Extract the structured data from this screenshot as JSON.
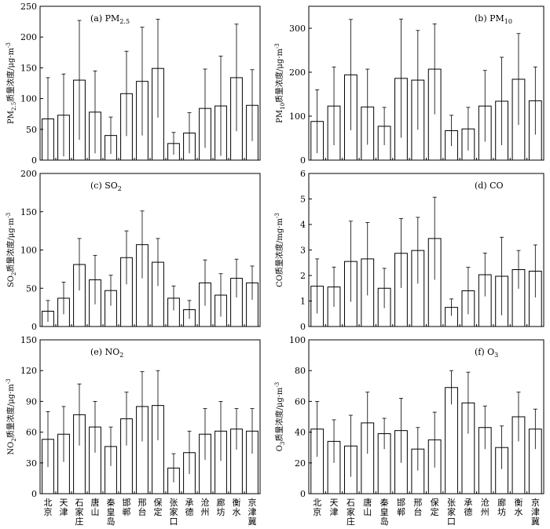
{
  "chart_data": [
    {
      "type": "bar",
      "panel": "a",
      "title": "(a) PM",
      "title_sub": "2.5",
      "ylabel": "PM",
      "ylabel_sub": "2.5",
      "ylabel_rest": "质量浓度/μg·m",
      "ylabel_sup": "-3",
      "ylim": [
        0,
        250
      ],
      "yticks": [
        0,
        50,
        100,
        150,
        200,
        250
      ],
      "categories": [
        "北京",
        "天津",
        "石家庄",
        "唐山",
        "秦皇岛",
        "邯郸",
        "邢台",
        "保定",
        "张家口",
        "承德",
        "沧州",
        "廊坊",
        "衡水",
        "京津冀"
      ],
      "values": [
        67,
        73,
        130,
        78,
        40,
        108,
        128,
        149,
        27,
        44,
        84,
        88,
        134,
        89
      ],
      "errors": [
        67,
        67,
        97,
        67,
        30,
        69,
        88,
        80,
        18,
        33,
        64,
        81,
        87,
        58
      ]
    },
    {
      "type": "bar",
      "panel": "b",
      "title": "(b) PM",
      "title_sub": "10",
      "ylabel": "PM",
      "ylabel_sub": "10",
      "ylabel_rest": "质量浓度/μg·m",
      "ylabel_sup": "-3",
      "ylim": [
        0,
        350
      ],
      "yticks": [
        0,
        100,
        200,
        300
      ],
      "categories": [
        "北京",
        "天津",
        "石家庄",
        "唐山",
        "秦皇岛",
        "邯郸",
        "邢台",
        "保定",
        "张家口",
        "承德",
        "沧州",
        "廊坊",
        "衡水",
        "京津冀"
      ],
      "values": [
        88,
        123,
        194,
        121,
        77,
        186,
        182,
        207,
        67,
        71,
        123,
        134,
        184,
        135
      ],
      "errors": [
        72,
        89,
        126,
        86,
        43,
        135,
        113,
        103,
        35,
        49,
        81,
        100,
        104,
        77
      ]
    },
    {
      "type": "bar",
      "panel": "c",
      "title": "(c) SO",
      "title_sub": "2",
      "ylabel": "SO",
      "ylabel_sub": "2",
      "ylabel_rest": "质量浓度/μg·m",
      "ylabel_sup": "-3",
      "ylim": [
        0,
        200
      ],
      "yticks": [
        0,
        50,
        100,
        150,
        200
      ],
      "categories": [
        "北京",
        "天津",
        "石家庄",
        "唐山",
        "秦皇岛",
        "邯郸",
        "邢台",
        "保定",
        "张家口",
        "承德",
        "沧州",
        "廊坊",
        "衡水",
        "京津冀"
      ],
      "values": [
        20,
        37,
        81,
        61,
        47,
        90,
        107,
        84,
        37,
        22,
        57,
        41,
        63,
        57
      ],
      "errors": [
        14,
        21,
        34,
        32,
        20,
        35,
        44,
        31,
        16,
        12,
        30,
        28,
        25,
        22
      ]
    },
    {
      "type": "bar",
      "panel": "d",
      "title": "(d) CO",
      "title_sub": "",
      "ylabel": "CO",
      "ylabel_sub": "",
      "ylabel_rest": "质量浓度/mg·m",
      "ylabel_sup": "-3",
      "ylim": [
        0,
        6
      ],
      "yticks": [
        0,
        1,
        2,
        3,
        4,
        5,
        6
      ],
      "categories": [
        "北京",
        "天津",
        "石家庄",
        "唐山",
        "秦皇岛",
        "邯郸",
        "邢台",
        "保定",
        "张家口",
        "承德",
        "沧州",
        "廊坊",
        "衡水",
        "京津冀"
      ],
      "values": [
        1.58,
        1.55,
        2.55,
        2.65,
        1.5,
        2.87,
        2.98,
        3.45,
        0.75,
        1.4,
        2.03,
        1.97,
        2.23,
        2.17
      ],
      "errors": [
        1.07,
        0.78,
        1.58,
        1.43,
        0.78,
        1.36,
        1.3,
        1.62,
        0.33,
        0.92,
        0.85,
        1.53,
        0.75,
        1.03
      ]
    },
    {
      "type": "bar",
      "panel": "e",
      "title": "(e) NO",
      "title_sub": "2",
      "ylabel": "NO",
      "ylabel_sub": "2",
      "ylabel_rest": "质量浓度/μg·m",
      "ylabel_sup": "-3",
      "ylim": [
        0,
        150
      ],
      "yticks": [
        0,
        30,
        60,
        90,
        120,
        150
      ],
      "categories": [
        "北京",
        "天津",
        "石家庄",
        "唐山",
        "秦皇岛",
        "邯郸",
        "邢台",
        "保定",
        "张家口",
        "承德",
        "沧州",
        "廊坊",
        "衡水",
        "京津冀"
      ],
      "values": [
        53,
        58,
        77,
        65,
        46,
        73,
        85,
        86,
        25,
        40,
        58,
        61,
        63,
        61
      ],
      "errors": [
        27,
        27,
        30,
        25,
        19,
        26,
        34,
        34,
        14,
        21,
        25,
        29,
        20,
        22
      ]
    },
    {
      "type": "bar",
      "panel": "f",
      "title": "(f) O",
      "title_sub": "3",
      "ylabel": "O",
      "ylabel_sub": "3",
      "ylabel_rest": "质量浓度/μg·m",
      "ylabel_sup": "-3",
      "ylim": [
        0,
        100
      ],
      "yticks": [
        0,
        20,
        40,
        60,
        80,
        100
      ],
      "categories": [
        "北京",
        "天津",
        "石家庄",
        "唐山",
        "秦皇岛",
        "邯郸",
        "邢台",
        "保定",
        "张家口",
        "承德",
        "沧州",
        "廊坊",
        "衡水",
        "京津冀"
      ],
      "values": [
        42,
        34,
        31,
        46,
        39,
        41,
        29,
        35,
        69,
        59,
        43,
        30,
        50,
        42
      ],
      "errors": [
        18,
        14,
        20,
        20,
        10,
        21,
        14,
        18,
        11,
        20,
        14,
        14,
        16,
        13
      ]
    }
  ]
}
